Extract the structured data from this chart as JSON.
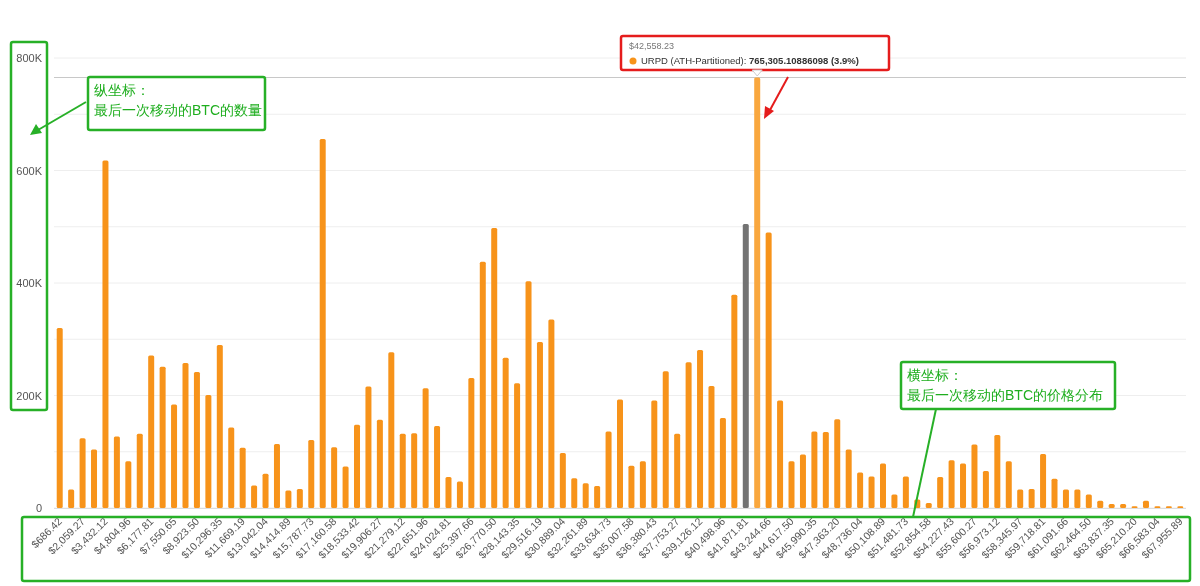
{
  "chart_data": {
    "type": "bar",
    "categories": [
      "$686.42",
      null,
      "$2,059.27",
      null,
      "$3,432.12",
      null,
      "$4,804.96",
      null,
      "$6,177.81",
      null,
      "$7,550.65",
      null,
      "$8,923.50",
      null,
      "$10,296.35",
      null,
      "$11,669.19",
      null,
      "$13,042.04",
      null,
      "$14,414.89",
      null,
      "$15,787.73",
      null,
      "$17,160.58",
      null,
      "$18,533.42",
      null,
      "$19,906.27",
      null,
      "$21,279.12",
      null,
      "$22,651.96",
      null,
      "$24,024.81",
      null,
      "$25,397.66",
      null,
      "$26,770.50",
      null,
      "$28,143.35",
      null,
      "$29,516.19",
      null,
      "$30,889.04",
      null,
      "$32,261.89",
      null,
      "$33,634.73",
      null,
      "$35,007.58",
      null,
      "$36,380.43",
      null,
      "$37,753.27",
      null,
      "$39,126.12",
      null,
      "$40,498.96",
      null,
      "$41,871.81",
      null,
      "$43,244.66",
      null,
      "$44,617.50",
      null,
      "$45,990.35",
      null,
      "$47,363.20",
      null,
      "$48,736.04",
      null,
      "$50,108.89",
      null,
      "$51,481.73",
      null,
      "$52,854.58",
      null,
      "$54,227.43",
      null,
      "$55,600.27",
      null,
      "$56,973.12",
      null,
      "$58,345.97",
      null,
      "$59,718.81",
      null,
      "$61,091.66",
      null,
      "$62,464.50",
      null,
      "$63,837.35",
      null,
      "$65,210.20",
      null,
      "$66,583.04",
      null,
      "$67,955.89"
    ],
    "values": [
      320000,
      33000,
      124000,
      104000,
      618000,
      127000,
      83000,
      132000,
      271000,
      251000,
      184000,
      258000,
      242000,
      201000,
      290000,
      143000,
      107000,
      40000,
      61000,
      114000,
      31000,
      34000,
      121000,
      656000,
      108000,
      74000,
      148000,
      216000,
      157000,
      277000,
      132000,
      133000,
      213000,
      146000,
      55000,
      47000,
      231000,
      438000,
      498000,
      267000,
      222000,
      403000,
      295000,
      335000,
      98000,
      53000,
      44000,
      39000,
      136000,
      193000,
      75000,
      83000,
      191000,
      243000,
      132000,
      259000,
      281000,
      217000,
      160000,
      379000,
      505000,
      765305.10886098,
      490000,
      191000,
      83000,
      95000,
      136000,
      135000,
      158000,
      104000,
      63000,
      56000,
      79000,
      24000,
      56000,
      15000,
      9000,
      55000,
      85000,
      79000,
      113000,
      66000,
      130000,
      83000,
      33000,
      34000,
      96000,
      52000,
      33000,
      33000,
      24000,
      13000,
      7000,
      7000,
      3000,
      13000,
      3000,
      3000,
      3000
    ],
    "colors": [
      "#f7931a",
      "#f7931a",
      "#f7931a",
      "#f7931a",
      "#f7931a",
      "#f7931a",
      "#f7931a",
      "#f7931a",
      "#f7931a",
      "#f7931a",
      "#f7931a",
      "#f7931a",
      "#f7931a",
      "#f7931a",
      "#f7931a",
      "#f7931a",
      "#f7931a",
      "#f7931a",
      "#f7931a",
      "#f7931a",
      "#f7931a",
      "#f7931a",
      "#f7931a",
      "#f7931a",
      "#f7931a",
      "#f7931a",
      "#f7931a",
      "#f7931a",
      "#f7931a",
      "#f7931a",
      "#f7931a",
      "#f7931a",
      "#f7931a",
      "#f7931a",
      "#f7931a",
      "#f7931a",
      "#f7931a",
      "#f7931a",
      "#f7931a",
      "#f7931a",
      "#f7931a",
      "#f7931a",
      "#f7931a",
      "#f7931a",
      "#f7931a",
      "#f7931a",
      "#f7931a",
      "#f7931a",
      "#f7931a",
      "#f7931a",
      "#f7931a",
      "#f7931a",
      "#f7931a",
      "#f7931a",
      "#f7931a",
      "#f7931a",
      "#f7931a",
      "#f7931a",
      "#f7931a",
      "#f7931a",
      "#737373",
      "#f9a73e",
      "#f7931a",
      "#f7931a",
      "#f7931a",
      "#f7931a",
      "#f7931a",
      "#f7931a",
      "#f7931a",
      "#f7931a",
      "#f7931a",
      "#f7931a",
      "#f7931a",
      "#f7931a",
      "#f7931a",
      "#f7931a",
      "#f7931a",
      "#f7931a",
      "#f7931a",
      "#f7931a",
      "#f7931a",
      "#f7931a",
      "#f7931a",
      "#f7931a",
      "#f7931a",
      "#f7931a",
      "#f7931a",
      "#f7931a",
      "#f7931a",
      "#f7931a",
      "#f7931a",
      "#f7931a",
      "#f7931a",
      "#f7931a",
      "#f7931a",
      "#f7931a",
      "#f7931a",
      "#f7931a",
      "#f7931a"
    ],
    "ylim": [
      0,
      800000
    ],
    "yticks": [
      {
        "value": 0,
        "label": "0"
      },
      {
        "value": 100000,
        "label": null
      },
      {
        "value": 200000,
        "label": "200K"
      },
      {
        "value": 300000,
        "label": null
      },
      {
        "value": 400000,
        "label": "400K"
      },
      {
        "value": 500000,
        "label": null
      },
      {
        "value": 600000,
        "label": "600K"
      },
      {
        "value": 700000,
        "label": null
      },
      {
        "value": 800000,
        "label": "800K"
      }
    ],
    "grid": "y",
    "ref_lines": [
      {
        "axis": "y",
        "value": 765305.10886098,
        "color": "#c8c8c8"
      }
    ],
    "annotations": [
      "$42,558.23",
      "URPD (ATH-Partitioned): 765,305.10886098 (3.9%)",
      "纵坐标：",
      "最后一次移动的BTC的数量",
      "横坐标：",
      "最后一次移动的BTC的价格分布"
    ]
  }
}
